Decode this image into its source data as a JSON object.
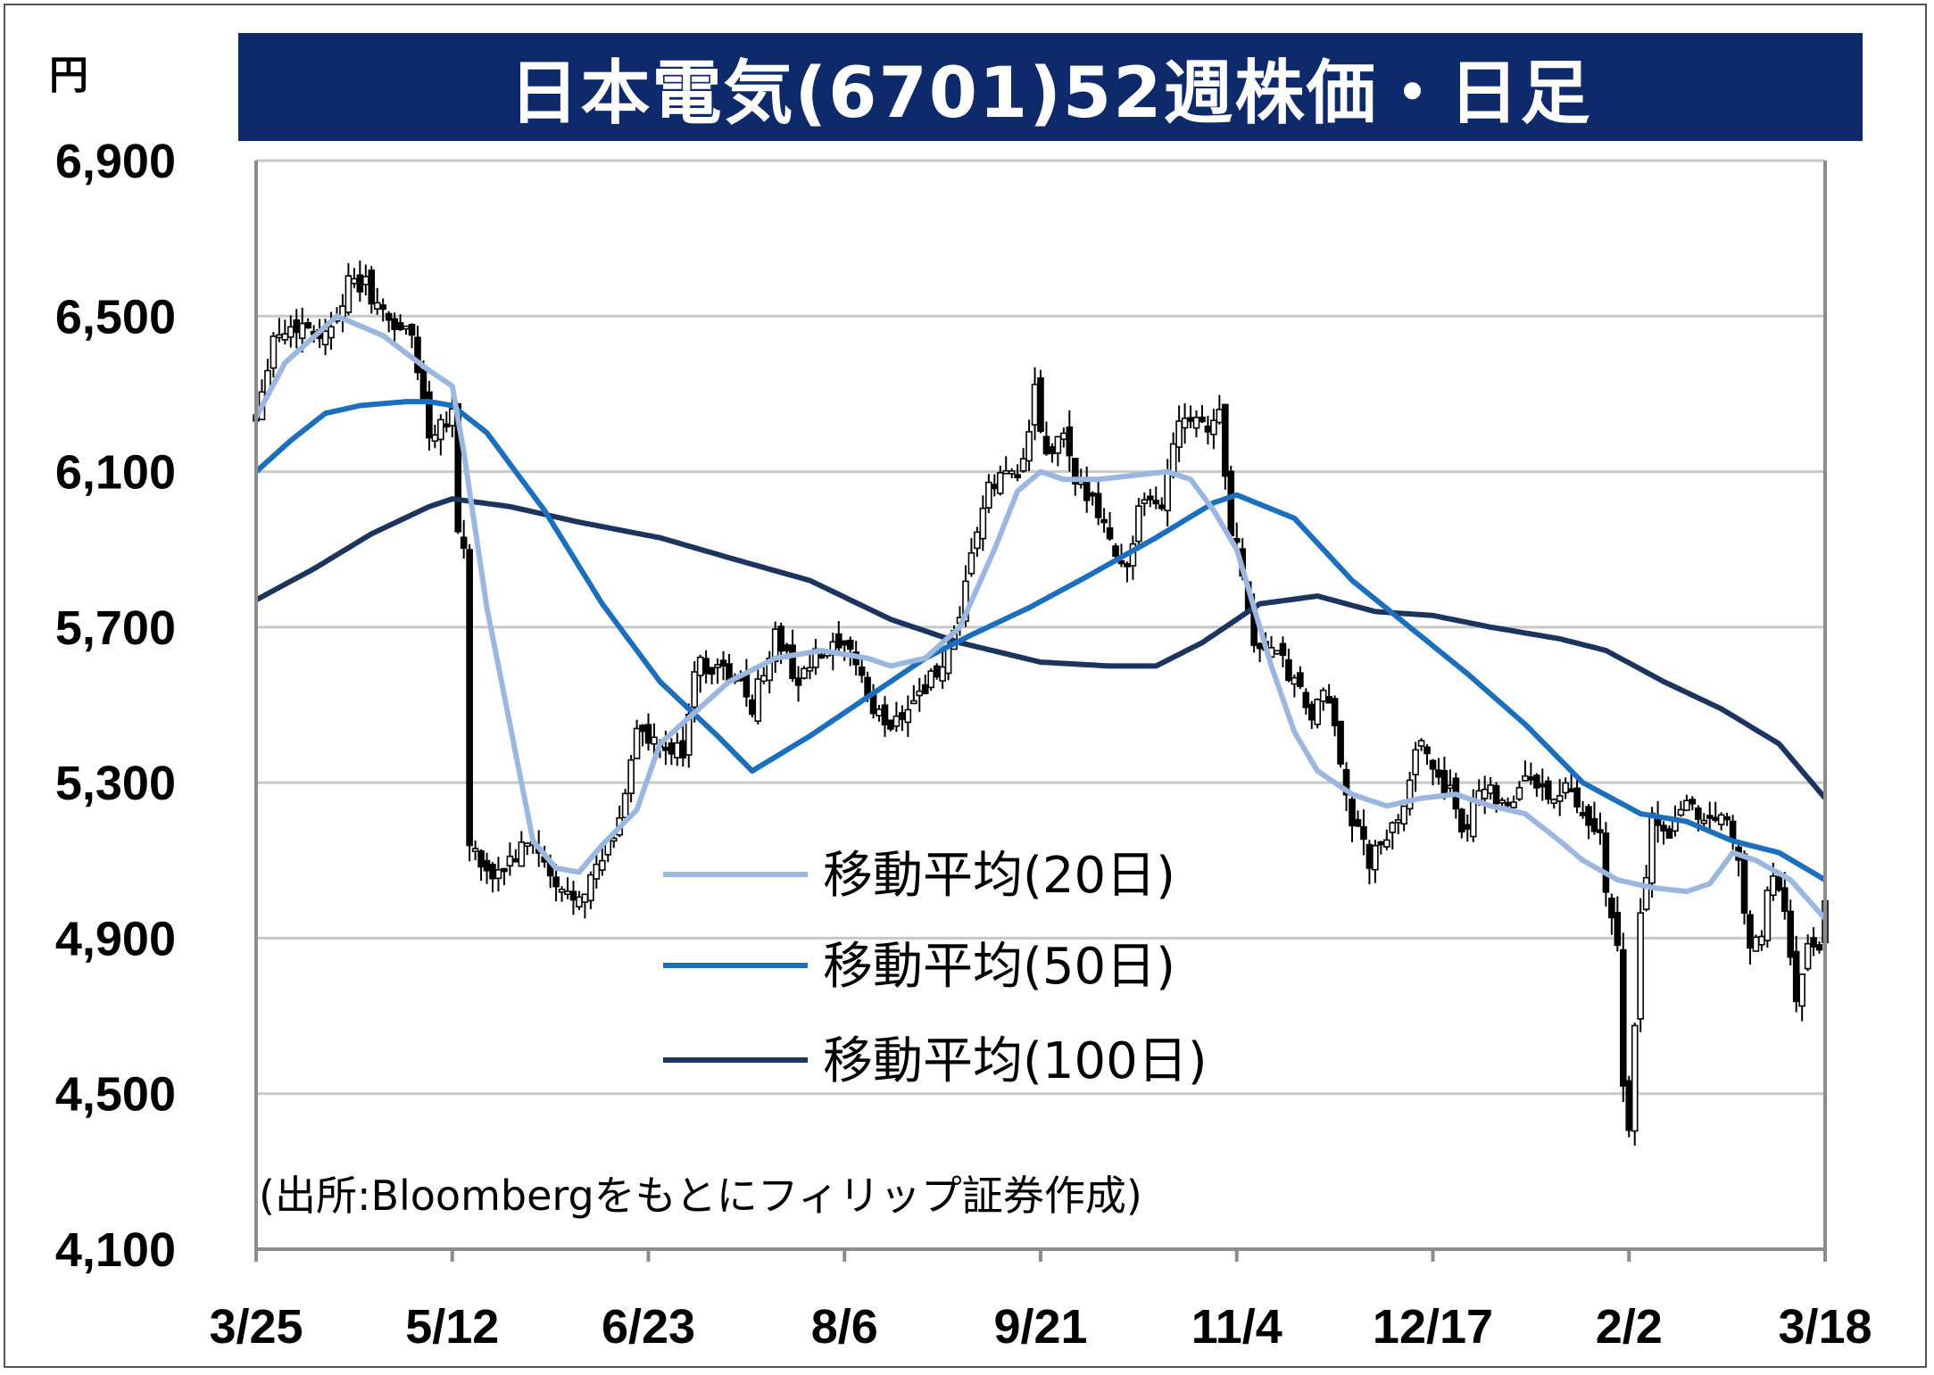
{
  "title": "日本電気(6701)52週株価・日足",
  "y_unit": "円",
  "source": "(出所:Bloombergをもとにフィリップ証券作成)",
  "legend": [
    {
      "label": "移動平均(20日)",
      "color": "#9bb7df"
    },
    {
      "label": "移動平均(50日)",
      "color": "#1b6fbd"
    },
    {
      "label": "移動平均(100日)",
      "color": "#1c355e"
    }
  ],
  "colors": {
    "title_bg": "#0f2a6b",
    "grid": "#c8c8c8",
    "axis": "#8c8c8c"
  },
  "chart_data": {
    "type": "candlestick",
    "ylim": [
      4100,
      6900
    ],
    "yticks": [
      6900,
      6500,
      6100,
      5700,
      5300,
      4900,
      4500,
      4100
    ],
    "ytick_labels": [
      "6,900",
      "6,500",
      "6,100",
      "5,700",
      "5,300",
      "4,900",
      "4,500",
      "4,100"
    ],
    "xticks": [
      "3/25",
      "5/12",
      "6/23",
      "8/6",
      "9/21",
      "11/4",
      "12/17",
      "2/2",
      "3/18"
    ],
    "xtick_index": [
      0,
      34,
      68,
      102,
      136,
      170,
      204,
      238,
      272
    ],
    "n_days": 273,
    "close_keypoints": [
      [
        0,
        6250
      ],
      [
        3,
        6450
      ],
      [
        8,
        6480
      ],
      [
        12,
        6450
      ],
      [
        16,
        6580
      ],
      [
        19,
        6580
      ],
      [
        22,
        6500
      ],
      [
        27,
        6450
      ],
      [
        30,
        6200
      ],
      [
        34,
        6260
      ],
      [
        35,
        5950
      ],
      [
        36,
        5900
      ],
      [
        37,
        5150
      ],
      [
        40,
        5050
      ],
      [
        44,
        5100
      ],
      [
        48,
        5150
      ],
      [
        52,
        5020
      ],
      [
        55,
        5010
      ],
      [
        58,
        5050
      ],
      [
        60,
        5100
      ],
      [
        63,
        5200
      ],
      [
        66,
        5450
      ],
      [
        68,
        5400
      ],
      [
        71,
        5380
      ],
      [
        74,
        5380
      ],
      [
        76,
        5600
      ],
      [
        80,
        5600
      ],
      [
        84,
        5550
      ],
      [
        86,
        5500
      ],
      [
        90,
        5680
      ],
      [
        94,
        5560
      ],
      [
        97,
        5620
      ],
      [
        100,
        5640
      ],
      [
        104,
        5620
      ],
      [
        107,
        5480
      ],
      [
        110,
        5450
      ],
      [
        113,
        5500
      ],
      [
        116,
        5550
      ],
      [
        119,
        5600
      ],
      [
        122,
        5700
      ],
      [
        124,
        5900
      ],
      [
        127,
        6050
      ],
      [
        130,
        6100
      ],
      [
        133,
        6120
      ],
      [
        135,
        6300
      ],
      [
        137,
        6130
      ],
      [
        140,
        6200
      ],
      [
        142,
        6050
      ],
      [
        145,
        6050
      ],
      [
        148,
        5920
      ],
      [
        151,
        5850
      ],
      [
        153,
        6000
      ],
      [
        157,
        6020
      ],
      [
        160,
        6250
      ],
      [
        163,
        6250
      ],
      [
        165,
        6220
      ],
      [
        167,
        6250
      ],
      [
        169,
        5950
      ],
      [
        171,
        5850
      ],
      [
        173,
        5650
      ],
      [
        176,
        5650
      ],
      [
        179,
        5580
      ],
      [
        183,
        5470
      ],
      [
        185,
        5520
      ],
      [
        187,
        5450
      ],
      [
        190,
        5200
      ],
      [
        193,
        5100
      ],
      [
        196,
        5150
      ],
      [
        199,
        5250
      ],
      [
        201,
        5400
      ],
      [
        204,
        5350
      ],
      [
        207,
        5270
      ],
      [
        209,
        5150
      ],
      [
        212,
        5300
      ],
      [
        215,
        5270
      ],
      [
        218,
        5250
      ],
      [
        221,
        5330
      ],
      [
        224,
        5250
      ],
      [
        227,
        5290
      ],
      [
        230,
        5200
      ],
      [
        233,
        5150
      ],
      [
        235,
        4930
      ],
      [
        236,
        4880
      ],
      [
        237,
        4500
      ],
      [
        238,
        4420
      ],
      [
        240,
        4950
      ],
      [
        242,
        5200
      ],
      [
        245,
        5180
      ],
      [
        248,
        5260
      ],
      [
        251,
        5200
      ],
      [
        254,
        5230
      ],
      [
        257,
        5120
      ],
      [
        259,
        4850
      ],
      [
        261,
        4920
      ],
      [
        263,
        5080
      ],
      [
        265,
        4950
      ],
      [
        267,
        4750
      ],
      [
        269,
        4870
      ],
      [
        271,
        4880
      ],
      [
        272,
        4990
      ]
    ],
    "ma20_keypoints": [
      [
        0,
        6240
      ],
      [
        5,
        6380
      ],
      [
        14,
        6500
      ],
      [
        22,
        6450
      ],
      [
        30,
        6360
      ],
      [
        34,
        6320
      ],
      [
        36,
        6150
      ],
      [
        40,
        5750
      ],
      [
        44,
        5450
      ],
      [
        48,
        5150
      ],
      [
        52,
        5080
      ],
      [
        56,
        5070
      ],
      [
        60,
        5140
      ],
      [
        66,
        5230
      ],
      [
        70,
        5400
      ],
      [
        76,
        5480
      ],
      [
        82,
        5560
      ],
      [
        90,
        5620
      ],
      [
        98,
        5640
      ],
      [
        106,
        5620
      ],
      [
        110,
        5600
      ],
      [
        116,
        5620
      ],
      [
        122,
        5700
      ],
      [
        128,
        5900
      ],
      [
        132,
        6050
      ],
      [
        136,
        6100
      ],
      [
        140,
        6080
      ],
      [
        146,
        6080
      ],
      [
        152,
        6090
      ],
      [
        158,
        6100
      ],
      [
        162,
        6080
      ],
      [
        166,
        6000
      ],
      [
        170,
        5900
      ],
      [
        176,
        5600
      ],
      [
        180,
        5430
      ],
      [
        184,
        5330
      ],
      [
        190,
        5270
      ],
      [
        196,
        5240
      ],
      [
        202,
        5260
      ],
      [
        208,
        5270
      ],
      [
        214,
        5240
      ],
      [
        220,
        5220
      ],
      [
        226,
        5150
      ],
      [
        230,
        5100
      ],
      [
        236,
        5050
      ],
      [
        242,
        5030
      ],
      [
        248,
        5020
      ],
      [
        252,
        5040
      ],
      [
        256,
        5120
      ],
      [
        260,
        5100
      ],
      [
        266,
        5050
      ],
      [
        272,
        4950
      ]
    ],
    "ma50_keypoints": [
      [
        0,
        6100
      ],
      [
        6,
        6180
      ],
      [
        12,
        6250
      ],
      [
        18,
        6270
      ],
      [
        26,
        6280
      ],
      [
        30,
        6280
      ],
      [
        34,
        6270
      ],
      [
        40,
        6200
      ],
      [
        50,
        6000
      ],
      [
        60,
        5760
      ],
      [
        70,
        5560
      ],
      [
        80,
        5420
      ],
      [
        86,
        5330
      ],
      [
        96,
        5420
      ],
      [
        106,
        5520
      ],
      [
        116,
        5620
      ],
      [
        124,
        5680
      ],
      [
        134,
        5750
      ],
      [
        144,
        5830
      ],
      [
        156,
        5930
      ],
      [
        166,
        6020
      ],
      [
        170,
        6040
      ],
      [
        180,
        5980
      ],
      [
        190,
        5820
      ],
      [
        200,
        5700
      ],
      [
        210,
        5580
      ],
      [
        220,
        5450
      ],
      [
        230,
        5300
      ],
      [
        240,
        5220
      ],
      [
        248,
        5200
      ],
      [
        256,
        5150
      ],
      [
        264,
        5120
      ],
      [
        272,
        5050
      ]
    ],
    "ma100_keypoints": [
      [
        0,
        5770
      ],
      [
        10,
        5850
      ],
      [
        20,
        5940
      ],
      [
        30,
        6010
      ],
      [
        34,
        6030
      ],
      [
        44,
        6010
      ],
      [
        56,
        5970
      ],
      [
        70,
        5930
      ],
      [
        84,
        5870
      ],
      [
        96,
        5820
      ],
      [
        110,
        5720
      ],
      [
        122,
        5660
      ],
      [
        136,
        5610
      ],
      [
        148,
        5600
      ],
      [
        156,
        5600
      ],
      [
        164,
        5660
      ],
      [
        174,
        5760
      ],
      [
        184,
        5780
      ],
      [
        194,
        5740
      ],
      [
        204,
        5730
      ],
      [
        214,
        5700
      ],
      [
        226,
        5670
      ],
      [
        234,
        5640
      ],
      [
        244,
        5560
      ],
      [
        254,
        5490
      ],
      [
        264,
        5400
      ],
      [
        272,
        5260
      ]
    ]
  }
}
